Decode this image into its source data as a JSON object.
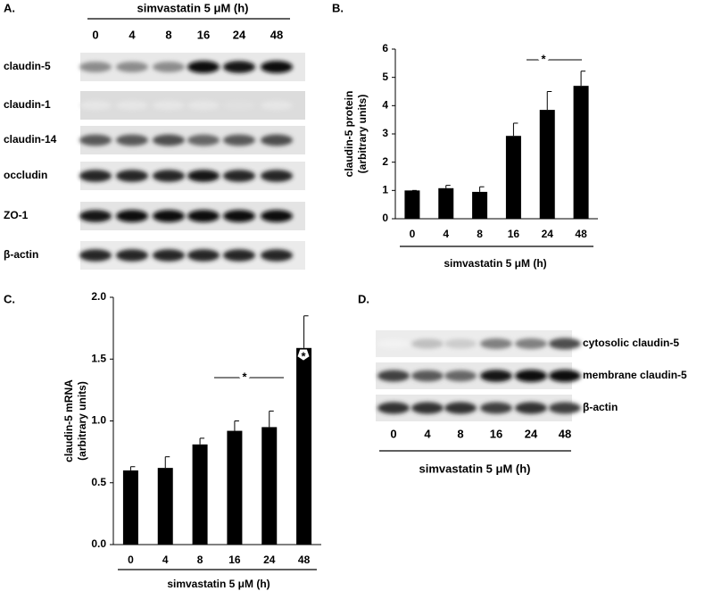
{
  "panel_labels": [
    "A.",
    "B.",
    "C.",
    "D."
  ],
  "blot_a": {
    "header": "simvastatin 5 μM (h)",
    "lanes": [
      "0",
      "4",
      "8",
      "16",
      "24",
      "48"
    ],
    "rows": [
      {
        "label": "claudin-5",
        "intensity": [
          0.45,
          0.45,
          0.45,
          0.95,
          0.9,
          0.95
        ]
      },
      {
        "label": "claudin-1",
        "intensity": [
          0.1,
          0.1,
          0.1,
          0.1,
          0.12,
          0.1
        ]
      },
      {
        "label": "claudin-14",
        "intensity": [
          0.65,
          0.65,
          0.7,
          0.6,
          0.65,
          0.7
        ]
      },
      {
        "label": "occludin",
        "intensity": [
          0.85,
          0.85,
          0.85,
          0.9,
          0.85,
          0.85
        ]
      },
      {
        "label": "ZO-1",
        "intensity": [
          0.9,
          0.95,
          0.95,
          0.95,
          0.95,
          0.95
        ]
      },
      {
        "label": "β-actin",
        "intensity": [
          0.85,
          0.85,
          0.85,
          0.85,
          0.85,
          0.85
        ]
      }
    ]
  },
  "blot_d": {
    "lanes": [
      "0",
      "4",
      "8",
      "16",
      "24",
      "48"
    ],
    "xlabel": "simvastatin 5 μM (h)",
    "rows": [
      {
        "label": "cytosolic claudin-5",
        "intensity": [
          0.05,
          0.25,
          0.2,
          0.5,
          0.5,
          0.7
        ]
      },
      {
        "label": "membrane claudin-5",
        "intensity": [
          0.75,
          0.65,
          0.6,
          0.9,
          0.95,
          0.95
        ]
      },
      {
        "label": "β-actin",
        "intensity": [
          0.8,
          0.8,
          0.8,
          0.75,
          0.8,
          0.75
        ]
      }
    ]
  },
  "chart_data": [
    {
      "type": "bar",
      "ylabel": [
        "claudin-5 protein",
        "(arbitrary units)"
      ],
      "xlabel": "simvastatin 5 μM (h)",
      "categories": [
        "0",
        "4",
        "8",
        "16",
        "24",
        "48"
      ],
      "values": [
        1,
        1.08,
        0.95,
        2.93,
        3.85,
        4.7
      ],
      "errors": [
        0,
        0.1,
        0.18,
        0.45,
        0.65,
        0.52
      ],
      "color": "#000000",
      "ylim": [
        0,
        6
      ],
      "yticks": [
        0,
        1,
        2,
        3,
        4,
        5,
        6
      ],
      "annotations": [
        "*"
      ]
    },
    {
      "type": "bar",
      "ylabel": [
        "claudin-5 mRNA",
        "(arbitrary units)"
      ],
      "xlabel": "simvastatin 5 μM (h)",
      "categories": [
        "0",
        "4",
        "8",
        "16",
        "24",
        "48"
      ],
      "values": [
        0.6,
        0.62,
        0.81,
        0.92,
        0.95,
        1.59
      ],
      "errors": [
        0.03,
        0.09,
        0.05,
        0.08,
        0.13,
        0.26
      ],
      "color": "#000000",
      "ylim": [
        0,
        2
      ],
      "yticks": [
        {
          "value": 0,
          "label": "0.0"
        },
        {
          "value": 0.5,
          "label": "0.5"
        },
        {
          "value": 1,
          "label": "1.0"
        },
        {
          "value": 1.5,
          "label": "1.5"
        },
        {
          "value": 2,
          "label": "2.0"
        }
      ],
      "annotations": [
        "*",
        "*"
      ]
    }
  ]
}
